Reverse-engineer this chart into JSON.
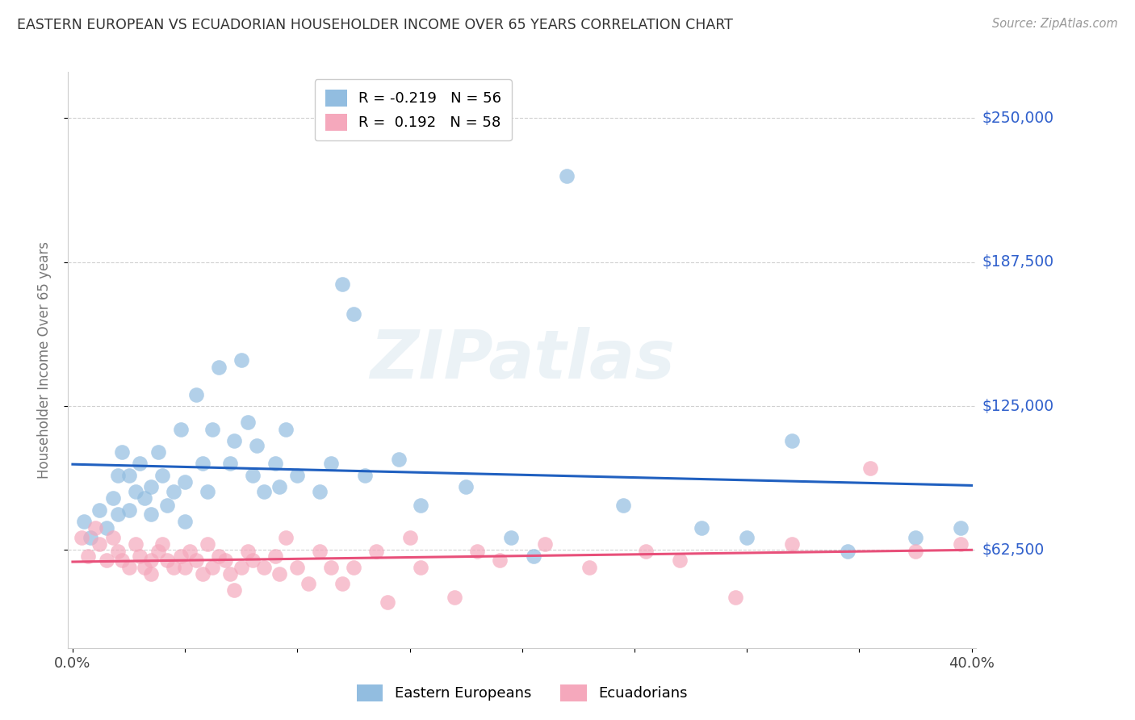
{
  "title": "EASTERN EUROPEAN VS ECUADORIAN HOUSEHOLDER INCOME OVER 65 YEARS CORRELATION CHART",
  "source": "Source: ZipAtlas.com",
  "ylabel": "Householder Income Over 65 years",
  "watermark": "ZIPatlas",
  "xlim": [
    -0.002,
    0.402
  ],
  "ylim": [
    20000,
    270000
  ],
  "yticks": [
    62500,
    125000,
    187500,
    250000
  ],
  "ytick_labels": [
    "$62,500",
    "$125,000",
    "$187,500",
    "$250,000"
  ],
  "xtick_positions": [
    0.0,
    0.05,
    0.1,
    0.15,
    0.2,
    0.25,
    0.3,
    0.35,
    0.4
  ],
  "xtick_labels": [
    "0.0%",
    "",
    "",
    "",
    "",
    "",
    "",
    "",
    "40.0%"
  ],
  "blue_R": -0.219,
  "blue_N": 56,
  "pink_R": 0.192,
  "pink_N": 58,
  "blue_label": "Eastern Europeans",
  "pink_label": "Ecuadorians",
  "blue_color": "#92bde0",
  "pink_color": "#f5a8bc",
  "blue_line_color": "#2060c0",
  "pink_line_color": "#e8507a",
  "title_color": "#333333",
  "ytick_color": "#3060cc",
  "grid_color": "#d0d0d0",
  "background_color": "#ffffff",
  "blue_x": [
    0.005,
    0.008,
    0.012,
    0.015,
    0.018,
    0.02,
    0.02,
    0.022,
    0.025,
    0.025,
    0.028,
    0.03,
    0.032,
    0.035,
    0.035,
    0.038,
    0.04,
    0.042,
    0.045,
    0.048,
    0.05,
    0.05,
    0.055,
    0.058,
    0.06,
    0.062,
    0.065,
    0.07,
    0.072,
    0.075,
    0.078,
    0.08,
    0.082,
    0.085,
    0.09,
    0.092,
    0.095,
    0.1,
    0.11,
    0.115,
    0.12,
    0.125,
    0.13,
    0.145,
    0.155,
    0.175,
    0.195,
    0.205,
    0.22,
    0.245,
    0.28,
    0.3,
    0.32,
    0.345,
    0.375,
    0.395
  ],
  "blue_y": [
    75000,
    68000,
    80000,
    72000,
    85000,
    95000,
    78000,
    105000,
    95000,
    80000,
    88000,
    100000,
    85000,
    90000,
    78000,
    105000,
    95000,
    82000,
    88000,
    115000,
    92000,
    75000,
    130000,
    100000,
    88000,
    115000,
    142000,
    100000,
    110000,
    145000,
    118000,
    95000,
    108000,
    88000,
    100000,
    90000,
    115000,
    95000,
    88000,
    100000,
    178000,
    165000,
    95000,
    102000,
    82000,
    90000,
    68000,
    60000,
    225000,
    82000,
    72000,
    68000,
    110000,
    62000,
    68000,
    72000
  ],
  "pink_x": [
    0.004,
    0.007,
    0.01,
    0.012,
    0.015,
    0.018,
    0.02,
    0.022,
    0.025,
    0.028,
    0.03,
    0.032,
    0.035,
    0.035,
    0.038,
    0.04,
    0.042,
    0.045,
    0.048,
    0.05,
    0.052,
    0.055,
    0.058,
    0.06,
    0.062,
    0.065,
    0.068,
    0.07,
    0.072,
    0.075,
    0.078,
    0.08,
    0.085,
    0.09,
    0.092,
    0.095,
    0.1,
    0.105,
    0.11,
    0.115,
    0.12,
    0.125,
    0.135,
    0.14,
    0.15,
    0.155,
    0.17,
    0.18,
    0.19,
    0.21,
    0.23,
    0.255,
    0.27,
    0.295,
    0.32,
    0.355,
    0.375,
    0.395
  ],
  "pink_y": [
    68000,
    60000,
    72000,
    65000,
    58000,
    68000,
    62000,
    58000,
    55000,
    65000,
    60000,
    55000,
    58000,
    52000,
    62000,
    65000,
    58000,
    55000,
    60000,
    55000,
    62000,
    58000,
    52000,
    65000,
    55000,
    60000,
    58000,
    52000,
    45000,
    55000,
    62000,
    58000,
    55000,
    60000,
    52000,
    68000,
    55000,
    48000,
    62000,
    55000,
    48000,
    55000,
    62000,
    40000,
    68000,
    55000,
    42000,
    62000,
    58000,
    65000,
    55000,
    62000,
    58000,
    42000,
    65000,
    98000,
    62000,
    65000
  ]
}
